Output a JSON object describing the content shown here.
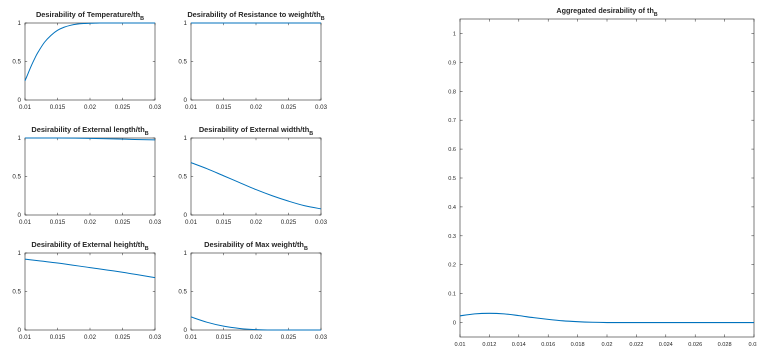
{
  "figure": {
    "title": ""
  },
  "chart_data": [
    {
      "type": "line",
      "title": "Desirability of Temperature/th_B",
      "title_main": "Desirability of Temperature/th",
      "title_sub": "B",
      "xlim": [
        0.01,
        0.03
      ],
      "ylim": [
        0,
        1
      ],
      "xticks": [
        "0.01",
        "0.015",
        "0.02",
        "0.025",
        "0.03"
      ],
      "yticks": [
        "0",
        "0.5",
        "1"
      ],
      "series": [
        {
          "color": "#0072BD",
          "x": [
            0.01,
            0.0105,
            0.011,
            0.0115,
            0.012,
            0.013,
            0.014,
            0.015,
            0.016,
            0.017,
            0.018,
            0.019,
            0.02,
            0.021,
            0.022,
            0.023,
            0.025,
            0.027,
            0.03
          ],
          "y": [
            0.25,
            0.35,
            0.45,
            0.54,
            0.62,
            0.75,
            0.84,
            0.905,
            0.945,
            0.97,
            0.985,
            0.993,
            0.997,
            0.999,
            1,
            1,
            1,
            1,
            1
          ]
        }
      ]
    },
    {
      "type": "line",
      "title": "Desirability of Resistance to weight/th_B",
      "title_main": "Desirability of Resistance to weight/th",
      "title_sub": "B",
      "xlim": [
        0.01,
        0.03
      ],
      "ylim": [
        0,
        1
      ],
      "xticks": [
        "0.01",
        "0.015",
        "0.02",
        "0.025",
        "0.03"
      ],
      "yticks": [
        "0",
        "0.5",
        "1"
      ],
      "series": [
        {
          "color": "#0072BD",
          "x": [
            0.01,
            0.03
          ],
          "y": [
            1,
            1
          ]
        }
      ]
    },
    {
      "type": "line",
      "title": "Desirability of External length/th_B",
      "title_main": "Desirability of External length/th",
      "title_sub": "B",
      "xlim": [
        0.01,
        0.03
      ],
      "ylim": [
        0,
        1
      ],
      "xticks": [
        "0.01",
        "0.015",
        "0.02",
        "0.025",
        "0.03"
      ],
      "yticks": [
        "0",
        "0.5",
        "1"
      ],
      "series": [
        {
          "color": "#0072BD",
          "x": [
            0.01,
            0.015,
            0.02,
            0.025,
            0.03
          ],
          "y": [
            1,
            1,
            0.995,
            0.985,
            0.975
          ]
        }
      ]
    },
    {
      "type": "line",
      "title": "Desirability of External width/th_B",
      "title_main": "Desirability of External width/th",
      "title_sub": "B",
      "xlim": [
        0.01,
        0.03
      ],
      "ylim": [
        0,
        1
      ],
      "xticks": [
        "0.01",
        "0.015",
        "0.02",
        "0.025",
        "0.03"
      ],
      "yticks": [
        "0",
        "0.5",
        "1"
      ],
      "series": [
        {
          "color": "#0072BD",
          "x": [
            0.01,
            0.0125,
            0.015,
            0.0175,
            0.02,
            0.0225,
            0.025,
            0.0275,
            0.03
          ],
          "y": [
            0.68,
            0.6,
            0.51,
            0.42,
            0.33,
            0.25,
            0.18,
            0.12,
            0.08
          ]
        }
      ]
    },
    {
      "type": "line",
      "title": "Desirability of External height/th_B",
      "title_main": "Desirability of External height/th",
      "title_sub": "B",
      "xlim": [
        0.01,
        0.03
      ],
      "ylim": [
        0,
        1
      ],
      "xticks": [
        "0.01",
        "0.015",
        "0.02",
        "0.025",
        "0.03"
      ],
      "yticks": [
        "0",
        "0.5",
        "1"
      ],
      "series": [
        {
          "color": "#0072BD",
          "x": [
            0.01,
            0.015,
            0.02,
            0.025,
            0.03
          ],
          "y": [
            0.92,
            0.87,
            0.81,
            0.75,
            0.68
          ]
        }
      ]
    },
    {
      "type": "line",
      "title": "Desirability of Max weight/th_B",
      "title_main": "Desirability of Max weight/th",
      "title_sub": "B",
      "xlim": [
        0.01,
        0.03
      ],
      "ylim": [
        0,
        1
      ],
      "xticks": [
        "0.01",
        "0.015",
        "0.02",
        "0.025",
        "0.03"
      ],
      "yticks": [
        "0",
        "0.5",
        "1"
      ],
      "series": [
        {
          "color": "#0072BD",
          "x": [
            0.01,
            0.0125,
            0.015,
            0.0175,
            0.02,
            0.0225,
            0.025,
            0.03
          ],
          "y": [
            0.17,
            0.1,
            0.05,
            0.02,
            0.005,
            0,
            0,
            0
          ]
        }
      ]
    },
    {
      "type": "line",
      "title": "Aggregated desirability of th_B",
      "title_main": "Aggregated desirability of th",
      "title_sub": "B",
      "xlim": [
        0.01,
        0.03
      ],
      "ylim": [
        -0.05,
        1.05
      ],
      "xticks": [
        "0.01",
        "0.012",
        "0.014",
        "0.016",
        "0.018",
        "0.02",
        "0.022",
        "0.024",
        "0.026",
        "0.028",
        "0.03"
      ],
      "yticks": [
        "0",
        "0.1",
        "0.2",
        "0.3",
        "0.4",
        "0.5",
        "0.6",
        "0.7",
        "0.8",
        "0.9",
        "1"
      ],
      "series": [
        {
          "color": "#0072BD",
          "x": [
            0.01,
            0.011,
            0.012,
            0.013,
            0.014,
            0.015,
            0.016,
            0.017,
            0.018,
            0.019,
            0.02,
            0.021,
            0.022,
            0.024,
            0.026,
            0.028,
            0.03
          ],
          "y": [
            0.023,
            0.03,
            0.032,
            0.03,
            0.024,
            0.017,
            0.011,
            0.006,
            0.003,
            0.001,
            0,
            0,
            0,
            0,
            0,
            0,
            0
          ]
        }
      ]
    }
  ]
}
